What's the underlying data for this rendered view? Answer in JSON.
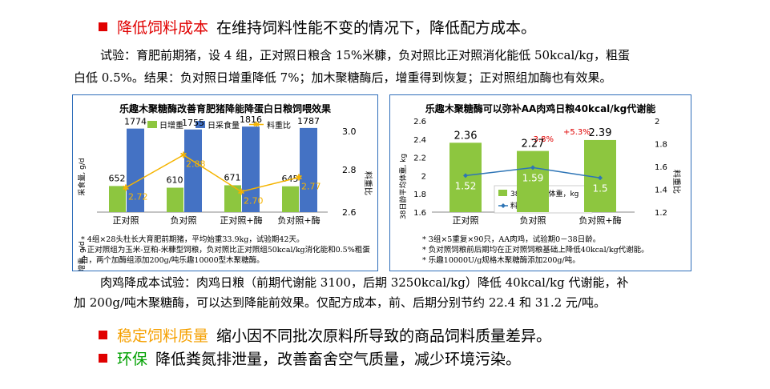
{
  "bullets": [
    {
      "label": "降低饲料成本",
      "label_color": "#e00000",
      "text": "在维持饲料性能不变的情况下，降低配方成本。"
    },
    {
      "label": "稳定饲料质量",
      "label_color": "#f5a000",
      "text": "缩小因不同批次原料所导致的商品饲料质量差异。"
    },
    {
      "label": "环保",
      "label_color": "#00a000",
      "text": "降低粪氮排泄量，改善畜舍空气质量，减少环境污染。"
    }
  ],
  "trial1": {
    "line1": "试验：育肥前期猪，设 4 组，正对照日粮含 15%米糠，负对照比正对照消化能低 50kcal/kg，粗蛋",
    "line2": "白低 0.5%。结果：负对照日增重降低 7%；加木聚糖酶后，增重得到恢复；正对照组加酶也有效果。"
  },
  "trial2": {
    "line1": "肉鸡降成本试验：肉鸡日粮（前期代谢能 3100，后期 3250kcal/kg）降低 40kcal/kg 代谢能，补",
    "line2": "加 200g/吨木聚糖酶，可以达到降能前效果。仅配方成本，前、后期分别节约 22.4 和 31.2 元/吨。"
  },
  "chart_data": [
    {
      "type": "bar",
      "title": "乐趣木聚糖酶改善育肥猪降能降蛋白日粮饲喂效果",
      "categories": [
        "正对照",
        "负对照",
        "正对照+酶",
        "负对照+酶"
      ],
      "series": [
        {
          "name": "日增重",
          "color": "#8dc63f",
          "values": [
            652,
            610,
            671,
            645
          ]
        },
        {
          "name": "日采食量",
          "color": "#4472c4",
          "values": [
            1774,
            1755,
            1816,
            1787
          ]
        },
        {
          "name": "料重比",
          "type": "line",
          "axis": "right",
          "color": "#f5b400",
          "values": [
            2.72,
            2.88,
            2.7,
            2.77
          ]
        }
      ],
      "ylabel_top": "采食量, g/d",
      "ylabel_bottom": "日增重, g/d",
      "y2label": "料重比",
      "y2ticks": [
        "3.0",
        "2.8",
        "2.6"
      ],
      "y2lim": [
        2.6,
        3.0
      ],
      "notes": [
        "* 4组×28头杜长大育肥前期猪，平均始重33.9kg，试验期42天。",
        "* 正对照组为玉米-豆粕-米糠型饲粮，负对照比正对照组50kcal/kg消化能和0.5%粗蛋",
        "  白，两个加酶组添加200g/吨乐趣10000型木聚糖酶。"
      ]
    },
    {
      "type": "bar",
      "title": "乐趣木聚糖酶可以弥补AA肉鸡日粮40kcal/kg代谢能",
      "categories": [
        "正对照",
        "负对照",
        "负对照+酶"
      ],
      "series": [
        {
          "name": "38日龄平均体重，kg",
          "color": "#8dc63f",
          "values": [
            2.36,
            2.27,
            2.39
          ]
        },
        {
          "name": "料重比",
          "type": "line",
          "axis": "right",
          "color": "#2e75b6",
          "values": [
            1.52,
            1.59,
            1.5
          ]
        }
      ],
      "annotations": [
        "-3.8%",
        "+5.3%"
      ],
      "ylabel": "38日龄平均体重, kg",
      "y2label": "料重比",
      "yticks": [
        "2.6",
        "2.4",
        "2.2",
        "2",
        "1.8",
        "1.6"
      ],
      "y2ticks": [
        "2",
        "1.8",
        "1.6",
        "1.4",
        "1.2"
      ],
      "ylim": [
        1.6,
        2.6
      ],
      "y2lim": [
        1.2,
        2.0
      ],
      "notes": [
        "* 3组×5重复×90只，AA肉鸡，试验期0－38日龄。",
        "* 负对照饲粮前后期均在正对照饲粮基础上降低40kcal/kg代谢能。",
        "* 乐趣10000U/g规格木聚糖酶添加200g/吨。"
      ]
    }
  ]
}
